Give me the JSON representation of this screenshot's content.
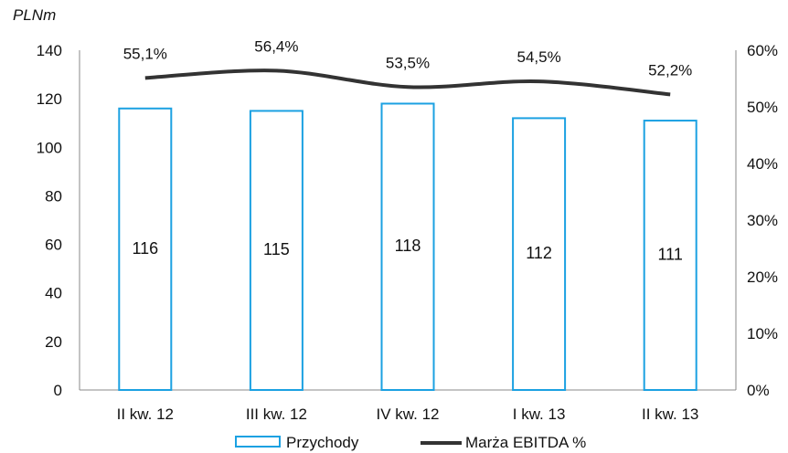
{
  "chart_data": {
    "type": "bar",
    "unit_label": "PLNm",
    "categories": [
      "II kw. 12",
      "III kw. 12",
      "IV kw. 12",
      "I kw. 13",
      "II kw. 13"
    ],
    "series": [
      {
        "name": "Przychody",
        "type": "bar",
        "axis": "left",
        "values": [
          116,
          115,
          118,
          112,
          111
        ],
        "labels": [
          "116",
          "115",
          "118",
          "112",
          "111"
        ],
        "color": "#1ba1e2"
      },
      {
        "name": "Marża EBITDA %",
        "type": "line",
        "axis": "right",
        "values": [
          55.1,
          56.4,
          53.5,
          54.5,
          52.2
        ],
        "labels": [
          "55,1%",
          "56,4%",
          "53,5%",
          "54,5%",
          "52,2%"
        ],
        "color": "#333333"
      }
    ],
    "y_left": {
      "min": 0,
      "max": 140,
      "ticks": [
        0,
        20,
        40,
        60,
        80,
        100,
        120,
        140
      ],
      "tick_labels": [
        "0",
        "20",
        "40",
        "60",
        "80",
        "100",
        "120",
        "140"
      ]
    },
    "y_right": {
      "min": 0,
      "max": 60,
      "ticks": [
        0,
        10,
        20,
        30,
        40,
        50,
        60
      ],
      "tick_labels": [
        "0%",
        "10%",
        "20%",
        "30%",
        "40%",
        "50%",
        "60%"
      ]
    },
    "grid": false,
    "legend_position": "bottom"
  }
}
